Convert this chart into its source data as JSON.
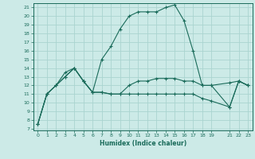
{
  "xlabel": "Humidex (Indice chaleur)",
  "bg_color": "#cceae7",
  "line_color": "#1a6b5a",
  "grid_color": "#aad4d0",
  "xlim": [
    -0.5,
    23.5
  ],
  "ylim": [
    6.8,
    21.5
  ],
  "yticks": [
    7,
    8,
    9,
    10,
    11,
    12,
    13,
    14,
    15,
    16,
    17,
    18,
    19,
    20,
    21
  ],
  "xtick_vals": [
    0,
    1,
    2,
    3,
    4,
    5,
    6,
    7,
    8,
    9,
    10,
    11,
    12,
    13,
    14,
    15,
    16,
    17,
    18,
    19,
    21,
    22,
    23
  ],
  "xtick_labels": [
    "0",
    "1",
    "2",
    "3",
    "4",
    "5",
    "6",
    "7",
    "8",
    "9",
    "10",
    "11",
    "12",
    "13",
    "14",
    "15",
    "16",
    "17",
    "18",
    "19",
    "21",
    "22",
    "23"
  ],
  "lines": [
    {
      "x": [
        0,
        1,
        2,
        3,
        4,
        5,
        6,
        7,
        8,
        9,
        10,
        11,
        12,
        13,
        14,
        15,
        16,
        17,
        18,
        19,
        21,
        22,
        23
      ],
      "y": [
        7.5,
        11.0,
        12.0,
        13.0,
        14.0,
        12.5,
        11.2,
        11.2,
        11.0,
        11.0,
        11.0,
        11.0,
        11.0,
        11.0,
        11.0,
        11.0,
        11.0,
        11.0,
        10.5,
        10.2,
        9.5,
        12.5,
        12.0
      ]
    },
    {
      "x": [
        0,
        1,
        2,
        3,
        4,
        5,
        6,
        7,
        8,
        9,
        10,
        11,
        12,
        13,
        14,
        15,
        16,
        17,
        18,
        19,
        21,
        22,
        23
      ],
      "y": [
        7.5,
        11.0,
        12.0,
        13.5,
        14.0,
        12.5,
        11.2,
        11.2,
        11.0,
        11.0,
        12.0,
        12.5,
        12.5,
        12.8,
        12.8,
        12.8,
        12.5,
        12.5,
        12.0,
        12.0,
        12.3,
        12.5,
        12.0
      ]
    },
    {
      "x": [
        0,
        1,
        2,
        3,
        4,
        5,
        6,
        7,
        8,
        9,
        10,
        11,
        12,
        13,
        14,
        15,
        16,
        17,
        18,
        19,
        21,
        22,
        23
      ],
      "y": [
        7.5,
        11.0,
        12.0,
        13.0,
        14.0,
        12.5,
        11.2,
        15.0,
        16.5,
        18.5,
        20.0,
        20.5,
        20.5,
        20.5,
        21.0,
        21.3,
        19.5,
        16.0,
        12.0,
        12.0,
        9.5,
        12.5,
        12.0
      ]
    }
  ]
}
